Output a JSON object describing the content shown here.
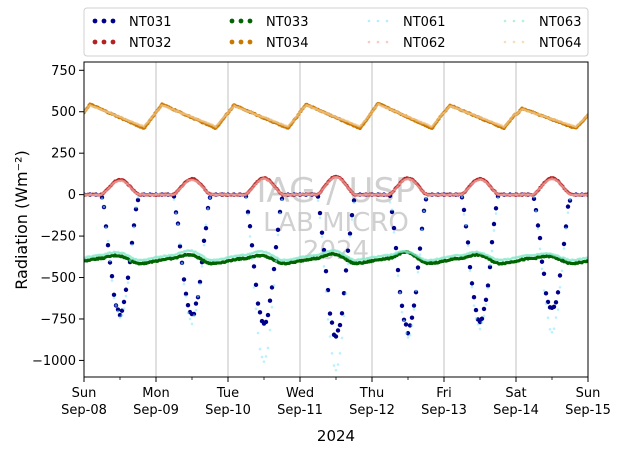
{
  "chart_data": {
    "type": "scatter",
    "title": "",
    "xlabel": "2024",
    "ylabel": "Radiation (Wm⁻²)",
    "ylim": [
      -1100,
      800
    ],
    "xlim": [
      "2024-09-08",
      "2024-09-15"
    ],
    "yticks": [
      -1000,
      -750,
      -500,
      -250,
      0,
      250,
      500,
      750
    ],
    "ytick_labels": [
      "−1000",
      "−750",
      "−500",
      "−250",
      "0",
      "250",
      "500",
      "750"
    ],
    "xticks": [
      {
        "day": "Sun",
        "date": "Sep-08"
      },
      {
        "day": "Mon",
        "date": "Sep-09"
      },
      {
        "day": "Tue",
        "date": "Sep-10"
      },
      {
        "day": "Wed",
        "date": "Sep-11"
      },
      {
        "day": "Thu",
        "date": "Sep-12"
      },
      {
        "day": "Fri",
        "date": "Sep-13"
      },
      {
        "day": "Sat",
        "date": "Sep-14"
      },
      {
        "day": "Sun",
        "date": "Sep-15"
      }
    ],
    "grid": "vertical",
    "legend_placement": "top",
    "watermark": [
      "IAG / USP",
      "LAB MICRO",
      "2024"
    ],
    "series": [
      {
        "name": "NT031",
        "color": "#00008b",
        "style": "dots",
        "sampled_x": [
          "2024-09-08 12:00",
          "2024-09-09 12:00",
          "2024-09-10 12:00",
          "2024-09-11 12:00",
          "2024-09-12 12:00",
          "2024-09-13 12:00",
          "2024-09-14 12:00"
        ],
        "night_value": 0,
        "daily_min": [
          -720,
          -730,
          -790,
          -850,
          -820,
          -760,
          -700
        ]
      },
      {
        "name": "NT032",
        "color": "#b22222",
        "style": "dots",
        "sampled_x": [
          "2024-09-08 12:00",
          "2024-09-09 12:00",
          "2024-09-10 12:00",
          "2024-09-11 12:00",
          "2024-09-12 12:00",
          "2024-09-13 12:00",
          "2024-09-14 12:00"
        ],
        "night_value": 0,
        "daily_max": [
          90,
          95,
          100,
          110,
          100,
          95,
          100
        ]
      },
      {
        "name": "NT033",
        "color": "#006400",
        "style": "dots",
        "sampled_x": [
          "2024-09-08 12:00",
          "2024-09-09 12:00",
          "2024-09-10 12:00",
          "2024-09-11 12:00",
          "2024-09-12 12:00",
          "2024-09-13 12:00",
          "2024-09-14 12:00"
        ],
        "night_value": -400,
        "daily_peak": [
          -370,
          -365,
          -370,
          -360,
          -350,
          -365,
          -375
        ]
      },
      {
        "name": "NT034",
        "color": "#c87800",
        "style": "dots",
        "sampled_x": [
          "2024-09-08 14:00",
          "2024-09-09 14:00",
          "2024-09-10 14:00",
          "2024-09-11 14:00",
          "2024-09-12 14:00",
          "2024-09-13 14:00",
          "2024-09-14 14:00"
        ],
        "night_min": 400,
        "daily_max": [
          545,
          545,
          540,
          545,
          550,
          540,
          520
        ]
      },
      {
        "name": "NT061",
        "color": "#7fe5ff",
        "style": "faint-dots",
        "sampled_x": [
          "2024-09-08 12:00",
          "2024-09-09 12:00",
          "2024-09-10 12:00",
          "2024-09-11 12:00",
          "2024-09-12 12:00",
          "2024-09-13 12:00",
          "2024-09-14 12:00"
        ],
        "night_value": 0,
        "daily_min": [
          -740,
          -760,
          -1000,
          -1060,
          -850,
          -800,
          -820
        ]
      },
      {
        "name": "NT062",
        "color": "#f4a6a0",
        "style": "faint-dots",
        "sampled_x": [
          "2024-09-08 12:00",
          "2024-09-09 12:00",
          "2024-09-10 12:00",
          "2024-09-11 12:00",
          "2024-09-12 12:00",
          "2024-09-13 12:00",
          "2024-09-14 12:00"
        ],
        "night_value": 0,
        "daily_max": [
          85,
          90,
          95,
          105,
          95,
          90,
          95
        ]
      },
      {
        "name": "NT063",
        "color": "#7fe8c8",
        "style": "faint-dots",
        "sampled_x": [
          "2024-09-08 12:00",
          "2024-09-09 12:00",
          "2024-09-10 12:00",
          "2024-09-11 12:00",
          "2024-09-12 12:00",
          "2024-09-13 12:00",
          "2024-09-14 12:00"
        ],
        "night_value": -380,
        "daily_peak": [
          -350,
          -340,
          -345,
          -340,
          -345,
          -350,
          -360
        ]
      },
      {
        "name": "NT064",
        "color": "#f2c68a",
        "style": "faint-dots",
        "sampled_x": [
          "2024-09-08 14:00",
          "2024-09-09 14:00",
          "2024-09-10 14:00",
          "2024-09-11 14:00",
          "2024-09-12 14:00",
          "2024-09-13 14:00",
          "2024-09-14 14:00"
        ],
        "night_min": 410,
        "daily_max": [
          540,
          540,
          535,
          540,
          545,
          535,
          515
        ]
      }
    ]
  }
}
